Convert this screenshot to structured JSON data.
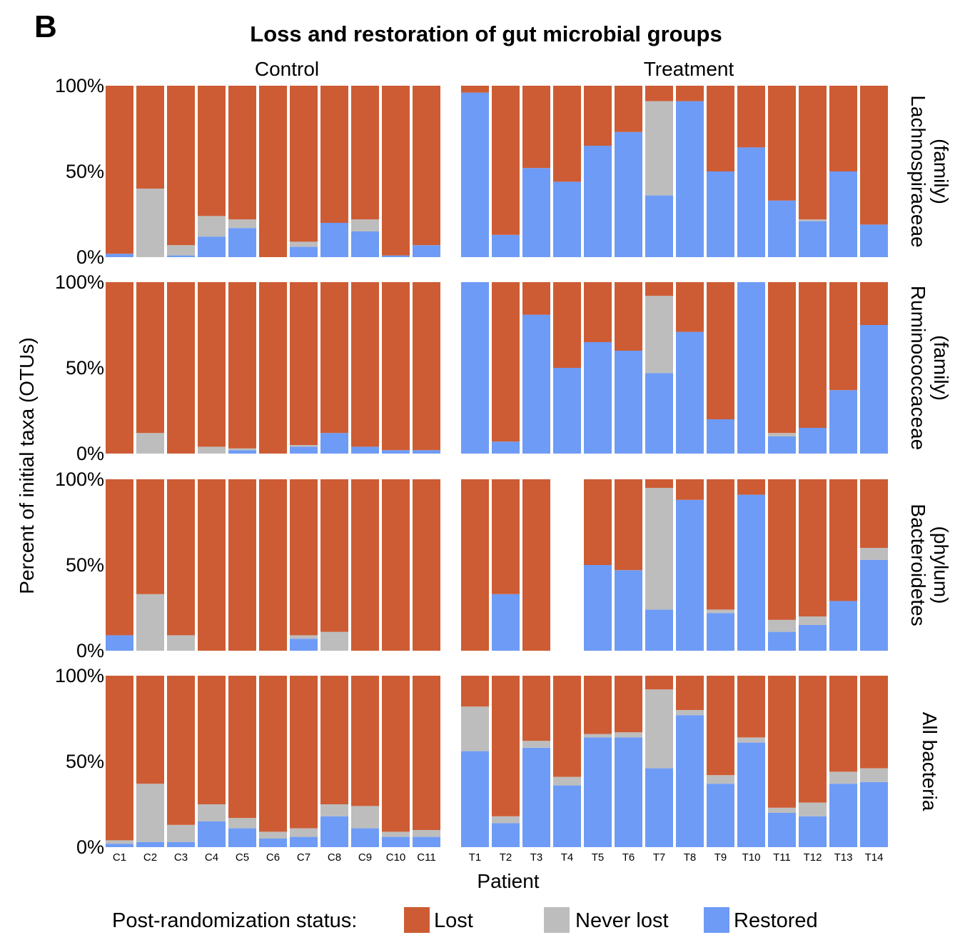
{
  "panel_label": "B",
  "legend": {
    "title": "Post-randomization status:"
  },
  "colors": {
    "lost": "#CD5C34",
    "never_lost": "#BDBDBD",
    "restored": "#6E9BF5"
  },
  "chart_data": {
    "type": "bar",
    "stacked": true,
    "title": "Loss and restoration of gut microbial groups",
    "xlabel": "Patient",
    "ylabel": "Percent of initial taxa (OTUs)",
    "ylim": [
      0,
      100
    ],
    "yticks": [
      "0%",
      "50%",
      "100%"
    ],
    "columns": [
      "Control",
      "Treatment"
    ],
    "rows": [
      "Lachnospiraceae (family)",
      "Ruminococcaceae (family)",
      "Bacteroidetes (phylum)",
      "All bacteria"
    ],
    "row_label_lines": [
      [
        "Lachnospiraceae",
        "(family)"
      ],
      [
        "Ruminococcaceae",
        "(family)"
      ],
      [
        "Bacteroidetes",
        "(phylum)"
      ],
      [
        "All bacteria"
      ]
    ],
    "categories": {
      "Control": [
        "C1",
        "C2",
        "C3",
        "C4",
        "C5",
        "C6",
        "C7",
        "C8",
        "C9",
        "C10",
        "C11"
      ],
      "Treatment": [
        "T1",
        "T2",
        "T3",
        "T4",
        "T5",
        "T6",
        "T7",
        "T8",
        "T9",
        "T10",
        "T11",
        "T12",
        "T13",
        "T14"
      ]
    },
    "series_names": [
      "Lost",
      "Never lost",
      "Restored"
    ],
    "panels": {
      "Lachnospiraceae (family)": {
        "Control": {
          "restored": [
            2,
            0,
            1,
            12,
            17,
            0,
            6,
            20,
            15,
            1,
            7
          ],
          "never_lost": [
            0,
            40,
            6,
            12,
            5,
            0,
            3,
            0,
            7,
            0,
            0
          ],
          "lost": [
            98,
            60,
            93,
            76,
            78,
            100,
            91,
            80,
            78,
            99,
            93
          ]
        },
        "Treatment": {
          "restored": [
            96,
            13,
            52,
            44,
            65,
            73,
            36,
            91,
            50,
            64,
            33,
            21,
            50,
            19
          ],
          "never_lost": [
            0,
            0,
            0,
            0,
            0,
            0,
            55,
            0,
            0,
            0,
            0,
            1,
            0,
            0
          ],
          "lost": [
            4,
            87,
            48,
            56,
            35,
            27,
            9,
            9,
            50,
            36,
            67,
            78,
            50,
            81
          ]
        }
      },
      "Ruminococcaceae (family)": {
        "Control": {
          "restored": [
            0,
            0,
            0,
            0,
            2,
            0,
            4,
            12,
            4,
            2,
            2
          ],
          "never_lost": [
            0,
            12,
            0,
            4,
            1,
            0,
            1,
            0,
            0,
            0,
            0
          ],
          "lost": [
            100,
            88,
            100,
            96,
            97,
            100,
            95,
            88,
            96,
            98,
            98
          ]
        },
        "Treatment": {
          "restored": [
            100,
            7,
            81,
            50,
            65,
            60,
            47,
            71,
            20,
            100,
            10,
            15,
            37,
            75
          ],
          "never_lost": [
            0,
            0,
            0,
            0,
            0,
            0,
            45,
            0,
            0,
            0,
            2,
            0,
            0,
            0
          ],
          "lost": [
            0,
            93,
            19,
            50,
            35,
            40,
            8,
            29,
            80,
            0,
            88,
            85,
            63,
            25
          ]
        }
      },
      "Bacteroidetes (phylum)": {
        "Control": {
          "restored": [
            9,
            0,
            0,
            0,
            0,
            0,
            7,
            0,
            0,
            0,
            0
          ],
          "never_lost": [
            0,
            33,
            9,
            0,
            0,
            0,
            2,
            11,
            0,
            0,
            0
          ],
          "lost": [
            91,
            67,
            91,
            100,
            100,
            100,
            91,
            89,
            100,
            100,
            100
          ]
        },
        "Treatment": {
          "restored": [
            0,
            33,
            0,
            null,
            50,
            47,
            24,
            88,
            22,
            91,
            11,
            15,
            29,
            53
          ],
          "never_lost": [
            0,
            0,
            0,
            null,
            0,
            0,
            71,
            0,
            2,
            0,
            7,
            5,
            0,
            7
          ],
          "lost": [
            100,
            67,
            100,
            null,
            50,
            53,
            5,
            12,
            76,
            9,
            82,
            80,
            71,
            40
          ]
        }
      },
      "All bacteria": {
        "Control": {
          "restored": [
            2,
            3,
            3,
            15,
            11,
            5,
            6,
            18,
            11,
            6,
            6
          ],
          "never_lost": [
            2,
            34,
            10,
            10,
            6,
            4,
            5,
            7,
            13,
            3,
            4
          ],
          "lost": [
            96,
            63,
            87,
            75,
            83,
            91,
            89,
            75,
            76,
            91,
            90
          ]
        },
        "Treatment": {
          "restored": [
            56,
            14,
            58,
            36,
            64,
            64,
            46,
            77,
            37,
            61,
            20,
            18,
            37,
            38
          ],
          "never_lost": [
            26,
            4,
            4,
            5,
            2,
            3,
            46,
            3,
            5,
            3,
            3,
            8,
            7,
            8
          ],
          "lost": [
            18,
            82,
            38,
            59,
            34,
            33,
            8,
            20,
            58,
            36,
            77,
            74,
            56,
            54
          ]
        }
      }
    }
  }
}
